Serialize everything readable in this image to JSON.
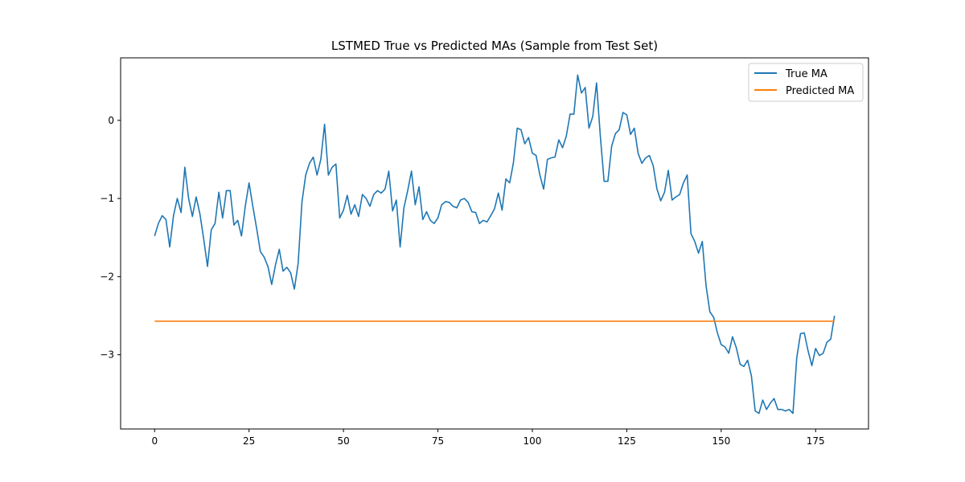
{
  "chart_data": {
    "type": "line",
    "title": "LSTMED True vs Predicted MAs (Sample from Test Set)",
    "xlabel": "",
    "ylabel": "",
    "xlim": [
      -9,
      189
    ],
    "ylim": [
      -3.95,
      0.8
    ],
    "xticks": [
      0,
      25,
      50,
      75,
      100,
      125,
      150,
      175
    ],
    "yticks": [
      0,
      -1,
      -2,
      -3
    ],
    "ytick_labels": [
      "0",
      "−1",
      "−2",
      "−3"
    ],
    "grid": false,
    "legend": "top-right",
    "series": [
      {
        "name": "True MA",
        "color": "#1f77b4",
        "x": [
          0,
          1,
          2,
          3,
          4,
          5,
          6,
          7,
          8,
          9,
          10,
          11,
          12,
          13,
          14,
          15,
          16,
          17,
          18,
          19,
          20,
          21,
          22,
          23,
          24,
          25,
          26,
          27,
          28,
          29,
          30,
          31,
          32,
          33,
          34,
          35,
          36,
          37,
          38,
          39,
          40,
          41,
          42,
          43,
          44,
          45,
          46,
          47,
          48,
          49,
          50,
          51,
          52,
          53,
          54,
          55,
          56,
          57,
          58,
          59,
          60,
          61,
          62,
          63,
          64,
          65,
          66,
          67,
          68,
          69,
          70,
          71,
          72,
          73,
          74,
          75,
          76,
          77,
          78,
          79,
          80,
          81,
          82,
          83,
          84,
          85,
          86,
          87,
          88,
          89,
          90,
          91,
          92,
          93,
          94,
          95,
          96,
          97,
          98,
          99,
          100,
          101,
          102,
          103,
          104,
          105,
          106,
          107,
          108,
          109,
          110,
          111,
          112,
          113,
          114,
          115,
          116,
          117,
          118,
          119,
          120,
          121,
          122,
          123,
          124,
          125,
          126,
          127,
          128,
          129,
          130,
          131,
          132,
          133,
          134,
          135,
          136,
          137,
          138,
          139,
          140,
          141,
          142,
          143,
          144,
          145,
          146,
          147,
          148,
          149,
          150,
          151,
          152,
          153,
          154,
          155,
          156,
          157,
          158,
          159,
          160,
          161,
          162,
          163,
          164,
          165,
          166,
          167,
          168,
          169,
          170,
          171,
          172,
          173,
          174,
          175,
          176,
          177,
          178,
          179,
          180
        ],
        "values": [
          -1.48,
          -1.32,
          -1.22,
          -1.27,
          -1.62,
          -1.22,
          -1.0,
          -1.18,
          -0.6,
          -1.0,
          -1.23,
          -0.98,
          -1.2,
          -1.52,
          -1.87,
          -1.4,
          -1.32,
          -0.92,
          -1.25,
          -0.9,
          -0.9,
          -1.34,
          -1.28,
          -1.48,
          -1.1,
          -0.8,
          -1.1,
          -1.38,
          -1.68,
          -1.75,
          -1.87,
          -2.1,
          -1.85,
          -1.65,
          -1.93,
          -1.88,
          -1.95,
          -2.16,
          -1.83,
          -1.05,
          -0.7,
          -0.55,
          -0.47,
          -0.7,
          -0.5,
          -0.05,
          -0.7,
          -0.6,
          -0.56,
          -1.25,
          -1.15,
          -0.96,
          -1.2,
          -1.08,
          -1.23,
          -0.95,
          -1.0,
          -1.1,
          -0.95,
          -0.9,
          -0.93,
          -0.88,
          -0.65,
          -1.16,
          -1.02,
          -1.62,
          -1.12,
          -0.9,
          -0.65,
          -1.08,
          -0.85,
          -1.27,
          -1.17,
          -1.28,
          -1.32,
          -1.25,
          -1.08,
          -1.04,
          -1.05,
          -1.1,
          -1.12,
          -1.02,
          -1.0,
          -1.05,
          -1.17,
          -1.18,
          -1.32,
          -1.28,
          -1.3,
          -1.22,
          -1.13,
          -0.93,
          -1.15,
          -0.75,
          -0.8,
          -0.54,
          -0.1,
          -0.12,
          -0.3,
          -0.22,
          -0.42,
          -0.45,
          -0.7,
          -0.88,
          -0.5,
          -0.48,
          -0.47,
          -0.25,
          -0.35,
          -0.2,
          0.08,
          0.08,
          0.58,
          0.35,
          0.42,
          -0.1,
          0.05,
          0.48,
          -0.2,
          -0.78,
          -0.78,
          -0.33,
          -0.17,
          -0.12,
          0.1,
          0.07,
          -0.18,
          -0.1,
          -0.42,
          -0.55,
          -0.48,
          -0.45,
          -0.58,
          -0.88,
          -1.03,
          -0.92,
          -0.64,
          -1.02,
          -0.98,
          -0.95,
          -0.8,
          -0.7,
          -1.45,
          -1.55,
          -1.7,
          -1.55,
          -2.12,
          -2.45,
          -2.52,
          -2.72,
          -2.87,
          -2.9,
          -2.98,
          -2.77,
          -2.91,
          -3.12,
          -3.15,
          -3.07,
          -3.27,
          -3.72,
          -3.75,
          -3.58,
          -3.7,
          -3.62,
          -3.56,
          -3.7,
          -3.7,
          -3.72,
          -3.7,
          -3.75,
          -3.04,
          -2.73,
          -2.72,
          -2.95,
          -3.14,
          -2.92,
          -3.01,
          -2.98,
          -2.84,
          -2.8,
          -2.5
        ]
      },
      {
        "name": "Predicted MA",
        "color": "#ff7f0e",
        "x": [
          0,
          180
        ],
        "values": [
          -2.57,
          -2.57
        ]
      }
    ]
  }
}
